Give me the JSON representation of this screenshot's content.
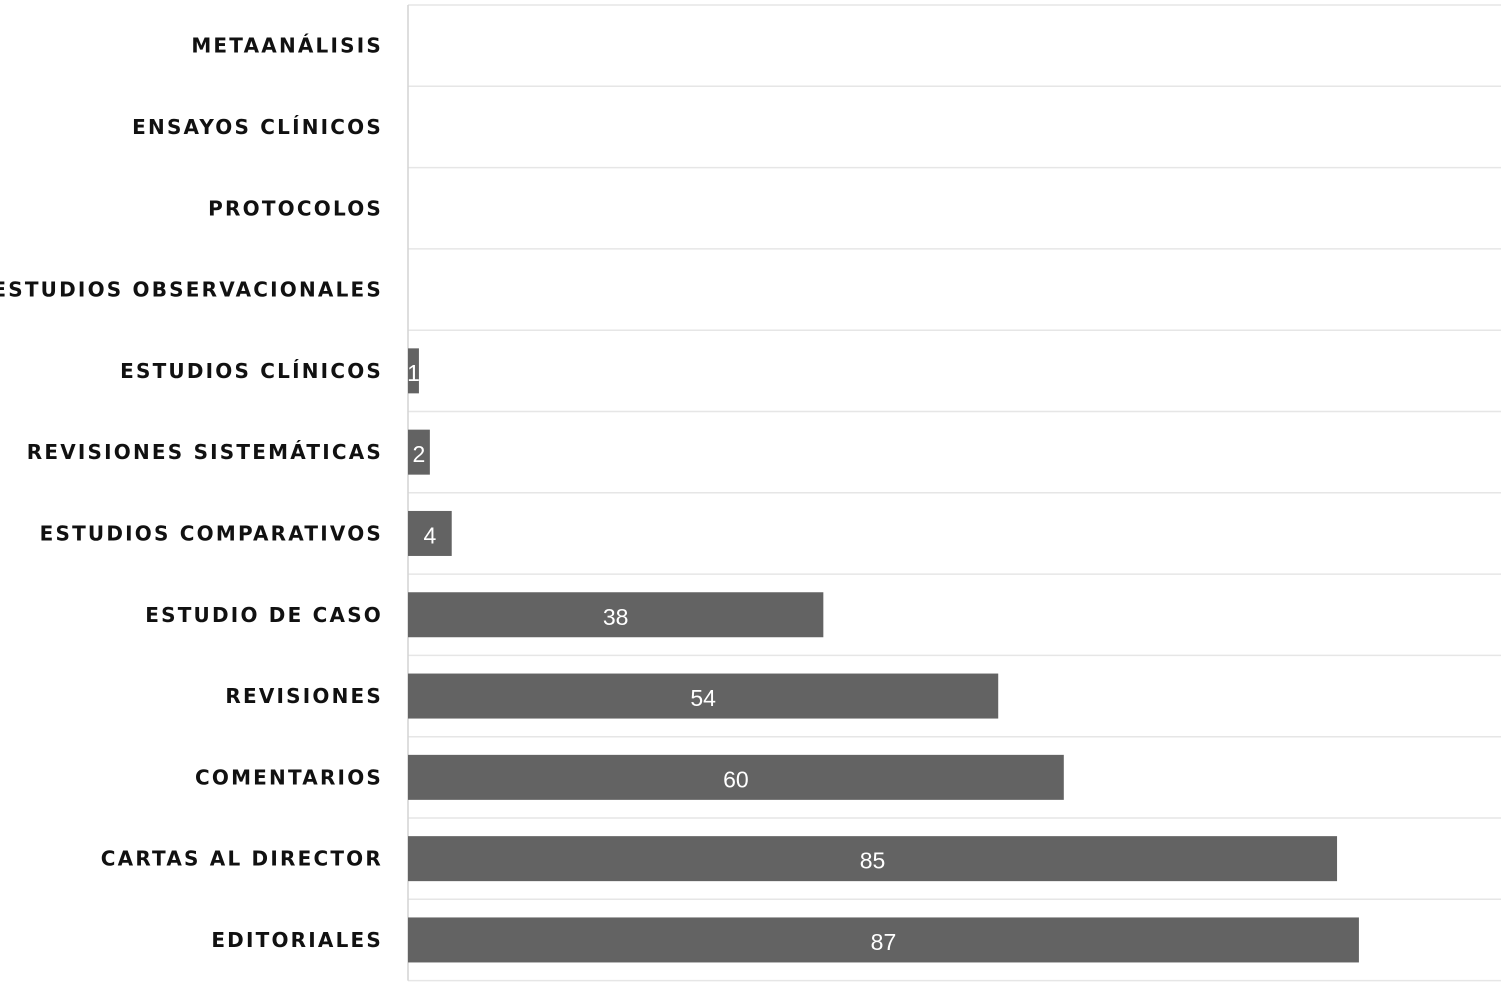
{
  "chart_data": {
    "type": "bar",
    "orientation": "horizontal",
    "categories": [
      "METAANÁLISIS",
      "ENSAYOS CLÍNICOS",
      "PROTOCOLOS",
      "ESTUDIOS OBSERVACIONALES",
      "ESTUDIOS CLÍNICOS",
      "REVISIONES SISTEMÁTICAS",
      "ESTUDIOS COMPARATIVOS",
      "ESTUDIO DE CASO",
      "REVISIONES",
      "COMENTARIOS",
      "CARTAS AL DIRECTOR",
      "EDITORIALES"
    ],
    "values": [
      null,
      null,
      null,
      null,
      1,
      2,
      4,
      38,
      54,
      60,
      85,
      87
    ],
    "xlim": [
      0,
      100
    ],
    "bar_color": "#636363",
    "grid": true,
    "legend": "none"
  }
}
